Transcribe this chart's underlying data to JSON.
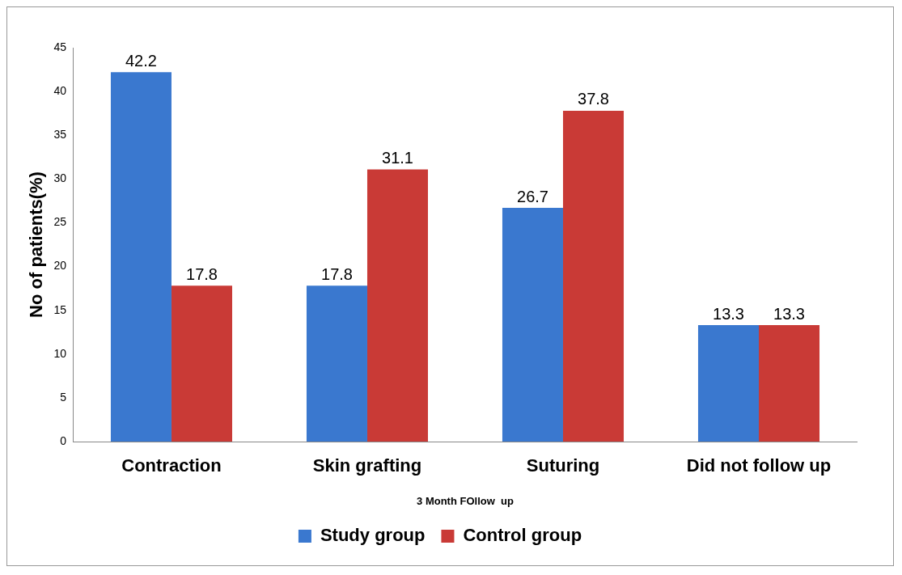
{
  "chart_data": {
    "type": "bar",
    "xlabel": "3 Month FOllow  up",
    "ylabel": "No of patients(%)",
    "categories": [
      "Contraction",
      "Skin grafting",
      "Suturing",
      "Did not follow up"
    ],
    "series": [
      {
        "name": "Study group",
        "color": "#3a78cf",
        "values": [
          42.2,
          17.8,
          26.7,
          13.3
        ]
      },
      {
        "name": "Control group",
        "color": "#c93a36",
        "values": [
          17.8,
          31.1,
          37.8,
          13.3
        ]
      }
    ],
    "ylim": [
      0,
      45
    ],
    "yticks": [
      0,
      5,
      10,
      15,
      20,
      25,
      30,
      35,
      40,
      45
    ],
    "grid": false,
    "legend": "bottom",
    "data_labels": true
  }
}
